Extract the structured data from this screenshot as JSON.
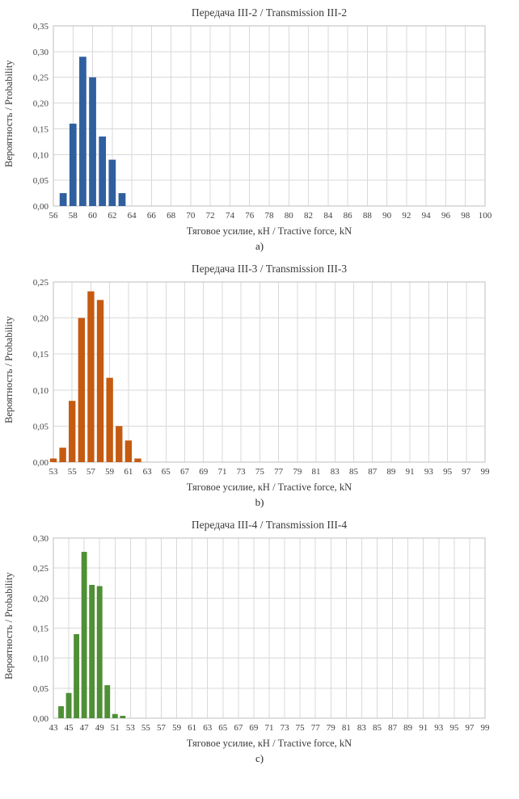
{
  "page": {
    "background": "#ffffff"
  },
  "chart_data": [
    {
      "type": "bar",
      "title": "Передача III-2 / Transmission III-2",
      "xlabel": "Тяговое усилие, кН / Tractive force, kN",
      "ylabel": "Вероятность / Probability",
      "caption": "a)",
      "color": "#2f5f9f",
      "grid": true,
      "legend": "none",
      "decimal": ",",
      "xlim": [
        56,
        100
      ],
      "xtick_step": 2,
      "ylim": [
        0,
        0.35
      ],
      "ytick_step": 0.05,
      "x": [
        57,
        58,
        59,
        60,
        61,
        62,
        63
      ],
      "values": [
        0.025,
        0.16,
        0.29,
        0.25,
        0.135,
        0.09,
        0.025
      ]
    },
    {
      "type": "bar",
      "title": "Передача III-3 / Transmission III-3",
      "xlabel": "Тяговое усилие, кН / Tractive force, kN",
      "ylabel": "Вероятность / Probability",
      "caption": "b)",
      "color": "#c55a11",
      "grid": true,
      "legend": "none",
      "decimal": ",",
      "xlim": [
        53,
        99
      ],
      "xtick_step": 2,
      "ylim": [
        0,
        0.25
      ],
      "ytick_step": 0.05,
      "x": [
        53,
        54,
        55,
        56,
        57,
        58,
        59,
        60,
        61,
        62
      ],
      "values": [
        0.005,
        0.02,
        0.085,
        0.2,
        0.237,
        0.225,
        0.117,
        0.05,
        0.03,
        0.005
      ]
    },
    {
      "type": "bar",
      "title": "Передача III-4 / Transmission III-4",
      "xlabel": "Тяговое усилие, кН / Tractive force, kN",
      "ylabel": "Вероятность / Probability",
      "caption": "c)",
      "color": "#4f8f35",
      "grid": true,
      "legend": "none",
      "decimal": ",",
      "xlim": [
        43,
        99
      ],
      "xtick_step": 2,
      "ylim": [
        0,
        0.3
      ],
      "ytick_step": 0.05,
      "x": [
        44,
        45,
        46,
        47,
        48,
        49,
        50,
        51,
        52
      ],
      "values": [
        0.02,
        0.042,
        0.14,
        0.277,
        0.222,
        0.22,
        0.055,
        0.007,
        0.004
      ]
    }
  ]
}
